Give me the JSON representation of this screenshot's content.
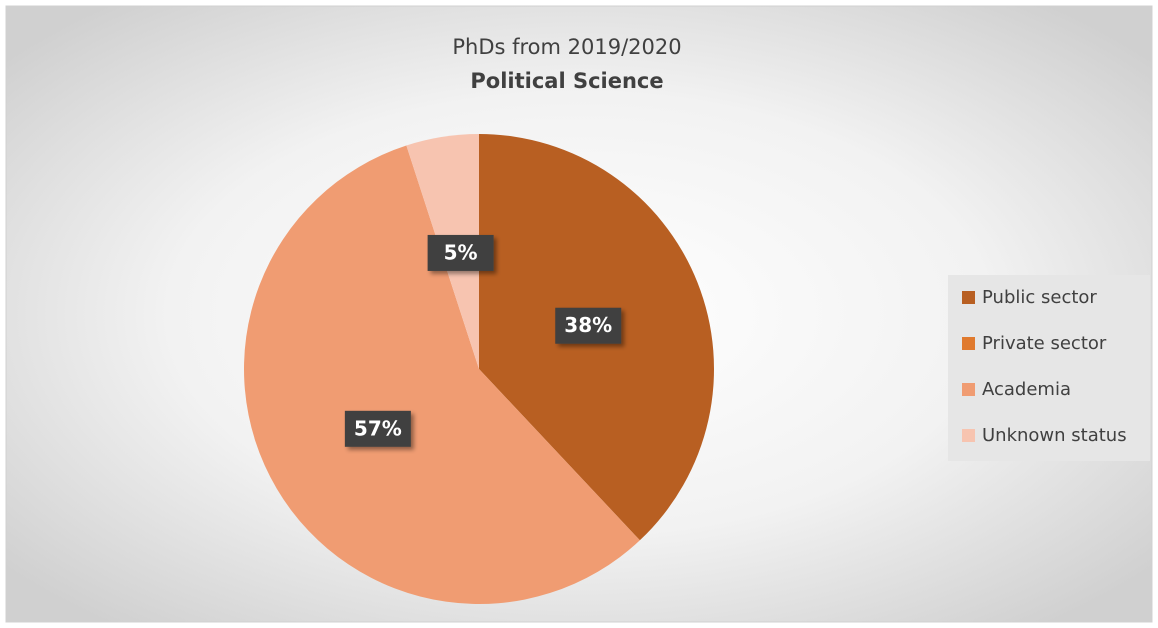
{
  "chart_data": {
    "type": "pie",
    "title": "PhDs from 2019/2020",
    "subtitle": "Political Science",
    "categories": [
      "Public sector",
      "Private sector",
      "Academia",
      "Unknown status"
    ],
    "values": [
      38,
      0,
      57,
      5
    ],
    "value_labels": [
      "38%",
      null,
      "57%",
      "5%"
    ],
    "colors": [
      "#b85f22",
      "#e07a2e",
      "#f09c72",
      "#f7c4b0"
    ],
    "legend": "right"
  }
}
